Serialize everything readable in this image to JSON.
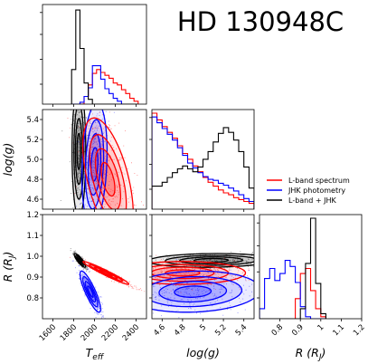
{
  "chart_data": {
    "type": "corner",
    "title": "HD 130948C",
    "parameters": [
      {
        "key": "teff",
        "label_main": "T",
        "label_sub": "eff",
        "range": [
          1500,
          2500
        ],
        "ticks": [
          1600,
          1800,
          2000,
          2200,
          2400
        ]
      },
      {
        "key": "logg",
        "label_main": "log(g)",
        "label_sub": "",
        "range": [
          4.5,
          5.5
        ],
        "ticks": [
          4.6,
          4.8,
          5.0,
          5.2,
          5.4
        ]
      },
      {
        "key": "radius",
        "label_main": "R (R",
        "label_sub": "J",
        "label_end": ")",
        "range": [
          0.7,
          1.2
        ],
        "ticks": [
          0.8,
          0.9,
          1.0,
          1.1,
          1.2
        ]
      }
    ],
    "legend": {
      "placement": "right-middle",
      "items": [
        {
          "name": "L-band spectrum",
          "color": "#ff0000"
        },
        {
          "name": "JHK photometry",
          "color": "#0000ff"
        },
        {
          "name": "L-band + JHK",
          "color": "#000000"
        }
      ]
    },
    "histograms": {
      "teff": {
        "bin_edges": [
          1780,
          1820,
          1860,
          1900,
          1940,
          1980,
          2020,
          2060,
          2100,
          2140,
          2180,
          2220,
          2260,
          2300,
          2340,
          2380,
          2420
        ],
        "series": [
          {
            "name": "L-band spectrum",
            "color": "#ff0000",
            "counts": [
              0,
              0,
              0,
              0.08,
              0.2,
              0.32,
              0.36,
              0.33,
              0.3,
              0.27,
              0.22,
              0.2,
              0.15,
              0.11,
              0.06,
              0.03
            ]
          },
          {
            "name": "JHK photometry",
            "color": "#0000ff",
            "counts": [
              0,
              0,
              0.02,
              0.08,
              0.17,
              0.4,
              0.4,
              0.26,
              0.16,
              0.11,
              0.06,
              0.03,
              0,
              0,
              0,
              0
            ]
          },
          {
            "name": "L-band + JHK",
            "color": "#000000",
            "counts": [
              0.36,
              0.98,
              0.58,
              0.22,
              0.05,
              0,
              0,
              0,
              0,
              0,
              0,
              0,
              0,
              0,
              0,
              0
            ]
          }
        ]
      },
      "logg": {
        "bin_edges": [
          4.5,
          4.55,
          4.6,
          4.65,
          4.7,
          4.75,
          4.8,
          4.85,
          4.9,
          4.95,
          5.0,
          5.05,
          5.1,
          5.15,
          5.2,
          5.25,
          5.3,
          5.35,
          5.4,
          5.45,
          5.5
        ],
        "series": [
          {
            "name": "L-band spectrum",
            "color": "#ff0000",
            "counts": [
              1.0,
              0.93,
              0.86,
              0.8,
              0.74,
              0.66,
              0.58,
              0.52,
              0.45,
              0.39,
              0.33,
              0.28,
              0.24,
              0.2,
              0.17,
              0.15,
              0.12,
              0.1,
              0.08,
              0.06
            ]
          },
          {
            "name": "JHK photometry",
            "color": "#0000ff",
            "counts": [
              0.96,
              0.9,
              0.84,
              0.78,
              0.72,
              0.64,
              0.56,
              0.48,
              0.43,
              0.38,
              0.34,
              0.31,
              0.3,
              0.27,
              0.25,
              0.22,
              0.19,
              0.15,
              0.11,
              0.08
            ]
          },
          {
            "name": "L-band + JHK",
            "color": "#000000",
            "counts": [
              0.24,
              0.24,
              0.28,
              0.33,
              0.38,
              0.42,
              0.45,
              0.42,
              0.39,
              0.44,
              0.52,
              0.6,
              0.7,
              0.79,
              0.85,
              0.8,
              0.72,
              0.6,
              0.44,
              0.22
            ]
          }
        ]
      },
      "radius": {
        "bin_edges": [
          0.7,
          0.725,
          0.75,
          0.775,
          0.8,
          0.825,
          0.85,
          0.875,
          0.9,
          0.925,
          0.95,
          0.975,
          1.0,
          1.025
        ],
        "series": [
          {
            "name": "L-band spectrum",
            "color": "#ff0000",
            "counts": [
              0,
              0,
              0,
              0,
              0,
              0,
              0,
              0.2,
              0.45,
              0.5,
              0.28,
              0.1,
              0.02
            ]
          },
          {
            "name": "JHK photometry",
            "color": "#0000ff",
            "counts": [
              0.1,
              0.4,
              0.5,
              0.38,
              0.45,
              0.58,
              0.52,
              0.36,
              0.12,
              0.02,
              0,
              0,
              0
            ]
          },
          {
            "name": "L-band + JHK",
            "color": "#000000",
            "counts": [
              0,
              0,
              0,
              0,
              0,
              0,
              0,
              0,
              0.1,
              0.55,
              1.0,
              0.35,
              0.05
            ]
          }
        ]
      }
    },
    "pair_distributions": [
      {
        "x": "teff",
        "y": "logg",
        "series": [
          {
            "name": "L-band + JHK",
            "color": "#000000",
            "center": [
              1850,
              5.08
            ],
            "sd": [
              30,
              0.3
            ],
            "rho": 0.0
          },
          {
            "name": "JHK photometry",
            "color": "#0000ff",
            "center": [
              2000,
              4.95
            ],
            "sd": [
              55,
              0.28
            ],
            "rho": 0.2
          },
          {
            "name": "L-band spectrum",
            "color": "#ff0000",
            "center": [
              2130,
              4.8
            ],
            "sd": [
              110,
              0.28
            ],
            "rho": -0.55
          }
        ]
      },
      {
        "x": "teff",
        "y": "radius",
        "series": [
          {
            "name": "L-band + JHK",
            "color": "#000000",
            "center": [
              1860,
              0.98
            ],
            "sd": [
              25,
              0.015
            ],
            "rho": -0.85
          },
          {
            "name": "JHK photometry",
            "color": "#0000ff",
            "center": [
              1960,
              0.83
            ],
            "sd": [
              45,
              0.045
            ],
            "rho": -0.85
          },
          {
            "name": "L-band spectrum",
            "color": "#ff0000",
            "center": [
              2110,
              0.92
            ],
            "sd": [
              100,
              0.025
            ],
            "rho": -0.97
          }
        ]
      },
      {
        "x": "logg",
        "y": "radius",
        "series": [
          {
            "name": "L-band + JHK",
            "color": "#000000",
            "center": [
              5.08,
              0.98
            ],
            "sd": [
              0.28,
              0.015
            ],
            "rho": 0.1
          },
          {
            "name": "L-band spectrum",
            "color": "#ff0000",
            "center": [
              4.8,
              0.92
            ],
            "sd": [
              0.28,
              0.025
            ],
            "rho": 0.0
          },
          {
            "name": "JHK photometry",
            "color": "#0000ff",
            "center": [
              4.9,
              0.83
            ],
            "sd": [
              0.3,
              0.045
            ],
            "rho": 0.1
          }
        ]
      }
    ]
  }
}
